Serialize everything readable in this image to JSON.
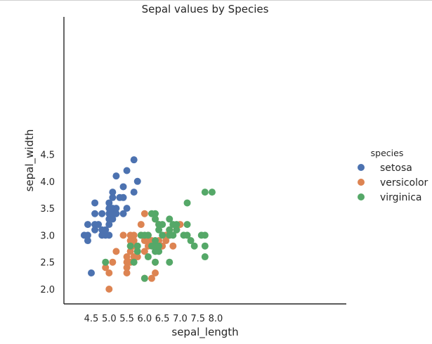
{
  "chart_data": {
    "type": "scatter",
    "title": "Sepal values by Species",
    "xlabel": "sepal_length",
    "ylabel": "sepal_width",
    "xlim": [
      4.2,
      8.1
    ],
    "ylim": [
      1.9,
      4.55
    ],
    "xticks": [
      4.5,
      5.0,
      5.5,
      6.0,
      6.5,
      7.0,
      7.5,
      8.0
    ],
    "yticks": [
      2.0,
      2.5,
      3.0,
      3.5,
      4.0,
      4.5
    ],
    "xtick_labels": [
      "4.5",
      "5.0",
      "5.5",
      "6.0",
      "6.5",
      "7.0",
      "7.5",
      "8.0"
    ],
    "ytick_labels": [
      "2.0",
      "2.5",
      "3.0",
      "3.5",
      "4.0",
      "4.5"
    ],
    "grid": false,
    "legend": {
      "title": "species",
      "placement": "right"
    },
    "series": [
      {
        "name": "setosa",
        "color": "#4c72b0",
        "points": [
          [
            4.3,
            3.0
          ],
          [
            4.4,
            2.9
          ],
          [
            4.4,
            3.0
          ],
          [
            4.4,
            3.2
          ],
          [
            4.5,
            2.3
          ],
          [
            4.6,
            3.1
          ],
          [
            4.6,
            3.2
          ],
          [
            4.6,
            3.4
          ],
          [
            4.6,
            3.6
          ],
          [
            4.7,
            3.2
          ],
          [
            4.8,
            3.0
          ],
          [
            4.8,
            3.1
          ],
          [
            4.8,
            3.4
          ],
          [
            4.9,
            3.0
          ],
          [
            4.9,
            3.1
          ],
          [
            5.0,
            3.0
          ],
          [
            5.0,
            3.2
          ],
          [
            5.0,
            3.3
          ],
          [
            5.0,
            3.4
          ],
          [
            5.0,
            3.5
          ],
          [
            5.0,
            3.6
          ],
          [
            5.1,
            3.3
          ],
          [
            5.1,
            3.4
          ],
          [
            5.1,
            3.5
          ],
          [
            5.1,
            3.7
          ],
          [
            5.1,
            3.8
          ],
          [
            5.2,
            3.4
          ],
          [
            5.2,
            3.5
          ],
          [
            5.2,
            4.1
          ],
          [
            5.3,
            3.7
          ],
          [
            5.4,
            3.4
          ],
          [
            5.4,
            3.7
          ],
          [
            5.4,
            3.9
          ],
          [
            5.5,
            3.5
          ],
          [
            5.5,
            4.2
          ],
          [
            5.7,
            3.8
          ],
          [
            5.7,
            4.4
          ],
          [
            5.8,
            4.0
          ]
        ]
      },
      {
        "name": "versicolor",
        "color": "#dd8452",
        "points": [
          [
            4.9,
            2.4
          ],
          [
            5.0,
            2.0
          ],
          [
            5.0,
            2.3
          ],
          [
            5.1,
            2.5
          ],
          [
            5.2,
            2.7
          ],
          [
            5.4,
            3.0
          ],
          [
            5.5,
            2.3
          ],
          [
            5.5,
            2.4
          ],
          [
            5.5,
            2.5
          ],
          [
            5.5,
            2.6
          ],
          [
            5.6,
            2.5
          ],
          [
            5.6,
            2.7
          ],
          [
            5.6,
            2.9
          ],
          [
            5.6,
            3.0
          ],
          [
            5.7,
            2.6
          ],
          [
            5.7,
            2.8
          ],
          [
            5.7,
            2.9
          ],
          [
            5.7,
            3.0
          ],
          [
            5.8,
            2.6
          ],
          [
            5.8,
            2.7
          ],
          [
            5.9,
            3.0
          ],
          [
            5.9,
            3.2
          ],
          [
            6.0,
            2.2
          ],
          [
            6.0,
            2.7
          ],
          [
            6.0,
            2.9
          ],
          [
            6.0,
            3.4
          ],
          [
            6.1,
            2.8
          ],
          [
            6.1,
            2.9
          ],
          [
            6.1,
            3.0
          ],
          [
            6.2,
            2.2
          ],
          [
            6.2,
            2.9
          ],
          [
            6.3,
            2.3
          ],
          [
            6.3,
            2.5
          ],
          [
            6.3,
            3.3
          ],
          [
            6.4,
            2.9
          ],
          [
            6.4,
            3.2
          ],
          [
            6.5,
            2.8
          ],
          [
            6.6,
            2.9
          ],
          [
            6.6,
            3.0
          ],
          [
            6.7,
            3.0
          ],
          [
            6.7,
            3.1
          ],
          [
            6.8,
            2.8
          ],
          [
            6.9,
            3.1
          ],
          [
            7.0,
            3.2
          ]
        ]
      },
      {
        "name": "virginica",
        "color": "#55a868",
        "points": [
          [
            4.9,
            2.5
          ],
          [
            5.6,
            2.8
          ],
          [
            5.7,
            2.5
          ],
          [
            5.8,
            2.7
          ],
          [
            5.8,
            2.8
          ],
          [
            5.9,
            3.0
          ],
          [
            6.0,
            2.2
          ],
          [
            6.0,
            3.0
          ],
          [
            6.1,
            2.6
          ],
          [
            6.1,
            3.0
          ],
          [
            6.2,
            2.8
          ],
          [
            6.2,
            3.4
          ],
          [
            6.3,
            2.5
          ],
          [
            6.3,
            2.7
          ],
          [
            6.3,
            2.8
          ],
          [
            6.3,
            2.9
          ],
          [
            6.3,
            3.3
          ],
          [
            6.3,
            3.4
          ],
          [
            6.4,
            2.7
          ],
          [
            6.4,
            2.8
          ],
          [
            6.4,
            3.1
          ],
          [
            6.4,
            3.2
          ],
          [
            6.5,
            3.0
          ],
          [
            6.5,
            3.2
          ],
          [
            6.7,
            2.5
          ],
          [
            6.7,
            3.0
          ],
          [
            6.7,
            3.1
          ],
          [
            6.7,
            3.3
          ],
          [
            6.8,
            3.0
          ],
          [
            6.8,
            3.2
          ],
          [
            6.9,
            3.1
          ],
          [
            6.9,
            3.2
          ],
          [
            7.1,
            3.0
          ],
          [
            7.2,
            3.0
          ],
          [
            7.2,
            3.2
          ],
          [
            7.2,
            3.6
          ],
          [
            7.3,
            2.9
          ],
          [
            7.4,
            2.8
          ],
          [
            7.6,
            3.0
          ],
          [
            7.7,
            2.6
          ],
          [
            7.7,
            2.8
          ],
          [
            7.7,
            3.0
          ],
          [
            7.7,
            3.8
          ],
          [
            7.9,
            3.8
          ]
        ]
      }
    ]
  }
}
